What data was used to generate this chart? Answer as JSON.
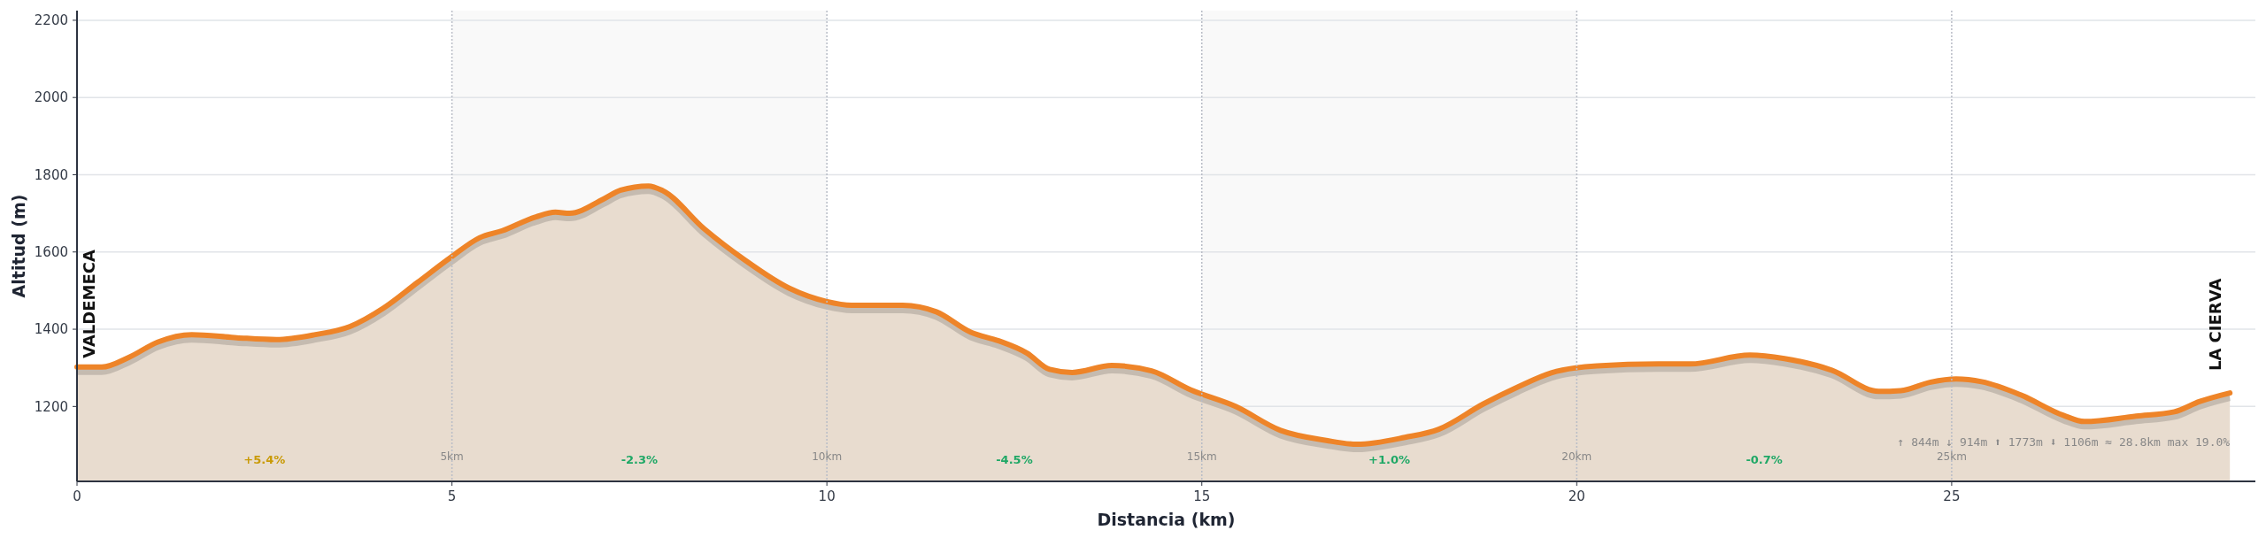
{
  "chart_data": {
    "type": "area",
    "xlabel": "Distancia (km)",
    "ylabel": "Altitud (m)",
    "xlim": [
      0,
      29.05
    ],
    "xticks": [
      0,
      5,
      10,
      15,
      20,
      25
    ],
    "ylim": [
      1006,
      2225
    ],
    "yticks": [
      1200,
      1400,
      1600,
      1800,
      2000,
      2200
    ],
    "grid": "y",
    "line_style": "solid",
    "series": [
      {
        "color": "#ee8428",
        "x": [
          0,
          0.33,
          0.7,
          1.08,
          1.53,
          2.13,
          2.66,
          3.18,
          3.64,
          4.09,
          4.54,
          4.99,
          5.37,
          5.67,
          6.12,
          6.38,
          6.57,
          7.02,
          7.25,
          7.62,
          7.81,
          8.37,
          8.9,
          9.5,
          9.99,
          10.33,
          11.01,
          11.46,
          11.92,
          12.29,
          12.67,
          12.97,
          13.27,
          13.8,
          14.33,
          14.85,
          15.45,
          16.05,
          16.66,
          17.07,
          17.71,
          18.16,
          18.76,
          19.21,
          19.66,
          20.27,
          21.09,
          21.51,
          22.31,
          22.77,
          23.4,
          24.03,
          24.32,
          24.72,
          25.06,
          25.4,
          25.92,
          26.49,
          26.77,
          27.46,
          27.97,
          28.31,
          28.71
        ],
        "values": [
          1302,
          1302,
          1328,
          1367,
          1386,
          1378,
          1373,
          1386,
          1407,
          1455,
          1521,
          1587,
          1637,
          1655,
          1691,
          1703,
          1700,
          1737,
          1760,
          1771,
          1759,
          1659,
          1580,
          1506,
          1472,
          1462,
          1462,
          1445,
          1392,
          1370,
          1338,
          1296,
          1288,
          1306,
          1292,
          1243,
          1200,
          1138,
          1112,
          1102,
          1120,
          1141,
          1207,
          1250,
          1287,
          1305,
          1310,
          1310,
          1333,
          1324,
          1294,
          1239,
          1241,
          1263,
          1271,
          1264,
          1230,
          1177,
          1161,
          1175,
          1186,
          1213,
          1235
        ]
      }
    ],
    "bands": [
      {
        "axis": "x",
        "from": 5,
        "to": 10,
        "color": "#f9f9f9"
      },
      {
        "axis": "x",
        "from": 15,
        "to": 20,
        "color": "#f9f9f9"
      }
    ],
    "ref_lines": [
      {
        "axis": "x",
        "value": 5,
        "label": "5km",
        "line_style": "dotted"
      },
      {
        "axis": "x",
        "value": 10,
        "label": "10km",
        "line_style": "dotted"
      },
      {
        "axis": "x",
        "value": 15,
        "label": "15km",
        "line_style": "dotted"
      },
      {
        "axis": "x",
        "value": 20,
        "label": "20km",
        "line_style": "dotted"
      },
      {
        "axis": "x",
        "value": 25,
        "label": "25km",
        "line_style": "dotted"
      }
    ],
    "annotations": [
      "+5.4%",
      "-2.3%",
      "-4.5%",
      "+1.0%",
      "-0.7%",
      {
        "text": "VALDEMECA",
        "x": 0,
        "y": 1302
      },
      {
        "text": "LA CIERVA",
        "x": 28.71,
        "y": 1235
      },
      "↑ 844m  ↓ 914m  ⬆ 1773m  ⬇ 1106m  ≈ 28.8km  max 19.0%"
    ]
  }
}
